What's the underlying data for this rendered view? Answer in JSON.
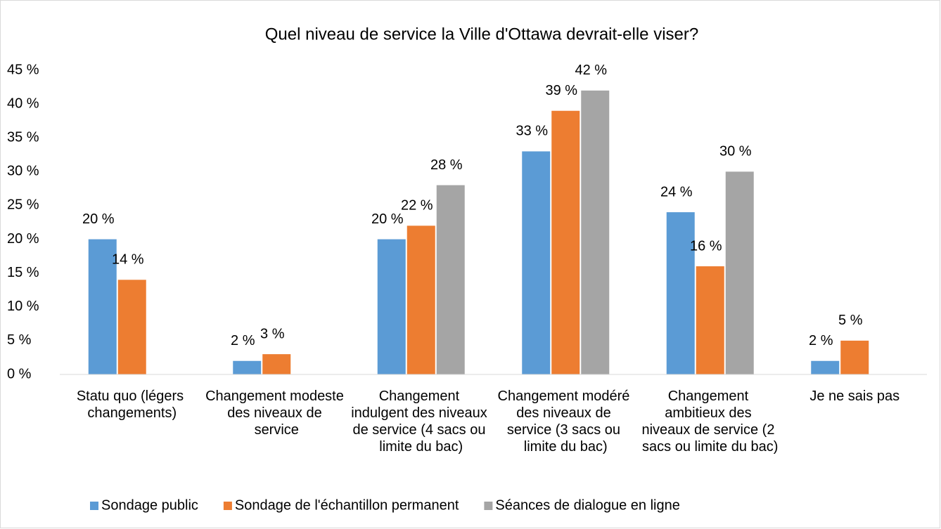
{
  "chart_data": {
    "type": "bar",
    "title": "Quel niveau de service la Ville d'Ottawa devrait-elle viser?",
    "categories": [
      "Statu quo (légers changements)",
      "Changement modeste des niveaux de service",
      "Changement indulgent des niveaux de service (4 sacs ou limite du bac)",
      "Changement modéré des niveaux de service (3 sacs ou limite du bac)",
      "Changement ambitieux des niveaux de service (2 sacs ou limite du bac)",
      "Je ne sais pas"
    ],
    "series": [
      {
        "name": "Sondage public",
        "color": "#5b9bd5",
        "values": [
          20,
          2,
          20,
          33,
          24,
          2
        ],
        "value_labels": [
          "20 %",
          "2 %",
          "20 %",
          "33 %",
          "24 %",
          "2 %"
        ]
      },
      {
        "name": "Sondage de l'échantillon permanent",
        "color": "#ed7d31",
        "values": [
          14,
          3,
          22,
          39,
          16,
          5
        ],
        "value_labels": [
          "14 %",
          "3 %",
          "22 %",
          "39 %",
          "16 %",
          "5 %"
        ]
      },
      {
        "name": "Séances de dialogue en ligne",
        "color": "#a5a5a5",
        "values": [
          null,
          null,
          28,
          42,
          30,
          null
        ],
        "value_labels": [
          null,
          null,
          "28 %",
          "42 %",
          "30 %",
          null
        ]
      }
    ],
    "ylim": [
      0,
      45
    ],
    "yticks": [
      {
        "value": 0,
        "label": "0 %"
      },
      {
        "value": 5,
        "label": "5 %"
      },
      {
        "value": 10,
        "label": "10 %"
      },
      {
        "value": 15,
        "label": "15 %"
      },
      {
        "value": 20,
        "label": "20 %"
      },
      {
        "value": 25,
        "label": "25 %"
      },
      {
        "value": 30,
        "label": "30 %"
      },
      {
        "value": 35,
        "label": "35 %"
      },
      {
        "value": 40,
        "label": "40 %"
      },
      {
        "value": 45,
        "label": "45 %"
      }
    ],
    "grid": false,
    "legend": "bottom"
  }
}
